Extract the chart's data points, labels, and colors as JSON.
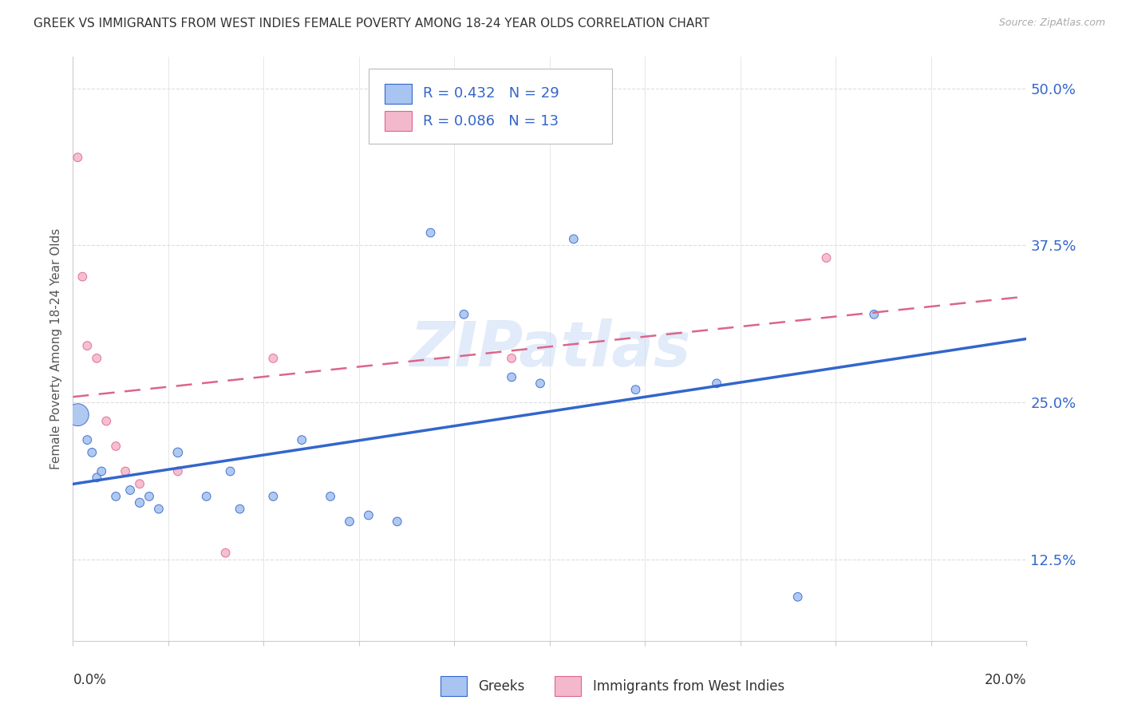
{
  "title": "GREEK VS IMMIGRANTS FROM WEST INDIES FEMALE POVERTY AMONG 18-24 YEAR OLDS CORRELATION CHART",
  "source": "Source: ZipAtlas.com",
  "ylabel": "Female Poverty Among 18-24 Year Olds",
  "series1_label": "Greeks",
  "series1_R": "0.432",
  "series1_N": "29",
  "series1_color": "#a8c4f0",
  "series1_line_color": "#3366cc",
  "series2_label": "Immigrants from West Indies",
  "series2_R": "0.086",
  "series2_N": "13",
  "series2_color": "#f4b8cc",
  "series2_line_color": "#dd6688",
  "watermark": "ZIPatlas",
  "greeks_x": [
    0.001,
    0.003,
    0.004,
    0.005,
    0.006,
    0.009,
    0.012,
    0.014,
    0.016,
    0.018,
    0.022,
    0.028,
    0.033,
    0.035,
    0.042,
    0.048,
    0.054,
    0.058,
    0.062,
    0.068,
    0.075,
    0.082,
    0.092,
    0.098,
    0.105,
    0.118,
    0.135,
    0.152,
    0.168
  ],
  "greeks_y": [
    0.24,
    0.22,
    0.21,
    0.19,
    0.195,
    0.175,
    0.18,
    0.17,
    0.175,
    0.165,
    0.21,
    0.175,
    0.195,
    0.165,
    0.175,
    0.22,
    0.175,
    0.155,
    0.16,
    0.155,
    0.385,
    0.32,
    0.27,
    0.265,
    0.38,
    0.26,
    0.265,
    0.095,
    0.32
  ],
  "greeks_size": [
    400,
    60,
    60,
    60,
    60,
    60,
    60,
    65,
    60,
    60,
    70,
    60,
    60,
    60,
    60,
    60,
    60,
    60,
    60,
    60,
    60,
    60,
    60,
    60,
    60,
    60,
    60,
    60,
    60
  ],
  "wi_x": [
    0.001,
    0.002,
    0.003,
    0.005,
    0.007,
    0.009,
    0.011,
    0.014,
    0.022,
    0.032,
    0.042,
    0.092,
    0.158
  ],
  "wi_y": [
    0.445,
    0.35,
    0.295,
    0.285,
    0.235,
    0.215,
    0.195,
    0.185,
    0.195,
    0.13,
    0.285,
    0.285,
    0.365
  ],
  "wi_size": [
    60,
    60,
    60,
    60,
    60,
    60,
    60,
    60,
    60,
    60,
    60,
    60,
    60
  ],
  "xmin": 0.0,
  "xmax": 0.2,
  "ymin": 0.06,
  "ymax": 0.525,
  "ytick_vals": [
    0.125,
    0.25,
    0.375,
    0.5
  ],
  "ytick_labels": [
    "12.5%",
    "25.0%",
    "37.5%",
    "50.0%"
  ],
  "title_color": "#333333",
  "source_color": "#aaaaaa",
  "legend_text_color": "#3366cc",
  "bg_color": "#ffffff",
  "grid_color": "#dddddd"
}
